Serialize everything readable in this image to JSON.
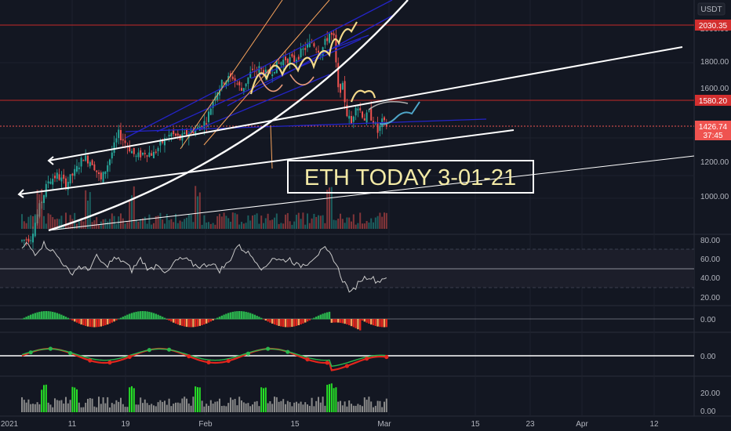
{
  "currency": "USDT",
  "annotation_text": "ETH TODAY 3-01-21",
  "current_price": {
    "value": "1426.74",
    "countdown": "37:45"
  },
  "levels": [
    {
      "label": "2030.35",
      "value": 2030.35
    },
    {
      "label": "1580.20",
      "value": 1580.2
    }
  ],
  "price_ticks": [
    "2000.00",
    "1800.00",
    "1600.00",
    "1400.00",
    "1200.00",
    "1000.00"
  ],
  "rsi_ticks": [
    "80.00",
    "60.00",
    "40.00",
    "20.00"
  ],
  "osc1_ticks": [
    "0.00"
  ],
  "osc2_ticks": [
    "0.00"
  ],
  "vol_ticks": [
    "20.00",
    "0.00"
  ],
  "time_ticks": [
    "2021",
    "11",
    "19",
    "Feb",
    "15",
    "Mar",
    "15",
    "23",
    "Apr",
    "12"
  ],
  "colors": {
    "background": "#131722",
    "up": "#26a69a",
    "down": "#ef5350",
    "level_line": "#c62828",
    "level_tag": "#d32f2f",
    "trend_white": "#ffffff",
    "channel_blue": "#2424c8",
    "orange_line": "#f7a35c",
    "annotation": "#f3eaa6",
    "projection": "#4fa6c9",
    "hist_green": "#2bb64e",
    "hist_red": "#e2261d",
    "vol_bar": "#8a8a8a",
    "vol_hi": "#27e127"
  },
  "chart_data": {
    "type": "candlestick",
    "symbol": "ETH / USDT",
    "price_axis": {
      "min": 900,
      "max": 2150,
      "unit": "USDT"
    },
    "price_path": [
      [
        0,
        740
      ],
      [
        4,
        760
      ],
      [
        8,
        940
      ],
      [
        12,
        1100
      ],
      [
        16,
        1130
      ],
      [
        20,
        1080
      ],
      [
        24,
        1150
      ],
      [
        28,
        1240
      ],
      [
        32,
        1210
      ],
      [
        36,
        1100
      ],
      [
        40,
        1230
      ],
      [
        44,
        1380
      ],
      [
        48,
        1310
      ],
      [
        52,
        1240
      ],
      [
        56,
        1270
      ],
      [
        60,
        1260
      ],
      [
        64,
        1330
      ],
      [
        68,
        1380
      ],
      [
        72,
        1350
      ],
      [
        76,
        1390
      ],
      [
        80,
        1410
      ],
      [
        84,
        1460
      ],
      [
        88,
        1620
      ],
      [
        92,
        1700
      ],
      [
        96,
        1720
      ],
      [
        100,
        1640
      ],
      [
        104,
        1740
      ],
      [
        108,
        1770
      ],
      [
        112,
        1730
      ],
      [
        116,
        1790
      ],
      [
        120,
        1830
      ],
      [
        124,
        1820
      ],
      [
        128,
        1880
      ],
      [
        132,
        1930
      ],
      [
        136,
        1870
      ],
      [
        140,
        1980
      ],
      [
        142,
        1950
      ],
      [
        144,
        1640
      ],
      [
        146,
        1660
      ],
      [
        148,
        1500
      ],
      [
        150,
        1440
      ],
      [
        152,
        1560
      ],
      [
        154,
        1520
      ],
      [
        156,
        1470
      ],
      [
        158,
        1500
      ],
      [
        160,
        1460
      ],
      [
        162,
        1390
      ],
      [
        164,
        1450
      ],
      [
        166,
        1430
      ]
    ],
    "rsi_path": [
      [
        0,
        70
      ],
      [
        2,
        76
      ],
      [
        6,
        66
      ],
      [
        10,
        76
      ],
      [
        14,
        68
      ],
      [
        18,
        58
      ],
      [
        22,
        44
      ],
      [
        26,
        52
      ],
      [
        30,
        48
      ],
      [
        34,
        62
      ],
      [
        38,
        52
      ],
      [
        42,
        60
      ],
      [
        46,
        58
      ],
      [
        50,
        48
      ],
      [
        54,
        60
      ],
      [
        58,
        48
      ],
      [
        62,
        55
      ],
      [
        66,
        44
      ],
      [
        70,
        58
      ],
      [
        74,
        60
      ],
      [
        78,
        54
      ],
      [
        82,
        52
      ],
      [
        86,
        56
      ],
      [
        90,
        48
      ],
      [
        94,
        56
      ],
      [
        98,
        74
      ],
      [
        102,
        68
      ],
      [
        106,
        60
      ],
      [
        110,
        48
      ],
      [
        114,
        62
      ],
      [
        118,
        58
      ],
      [
        122,
        60
      ],
      [
        126,
        52
      ],
      [
        130,
        56
      ],
      [
        134,
        64
      ],
      [
        138,
        70
      ],
      [
        142,
        60
      ],
      [
        146,
        38
      ],
      [
        150,
        24
      ],
      [
        154,
        38
      ],
      [
        158,
        42
      ],
      [
        162,
        36
      ],
      [
        166,
        42
      ]
    ],
    "volume_bars_note": "relative volume bars; highlighted spikes near Jan 9, Jan 22, Feb 5, Feb 23"
  }
}
